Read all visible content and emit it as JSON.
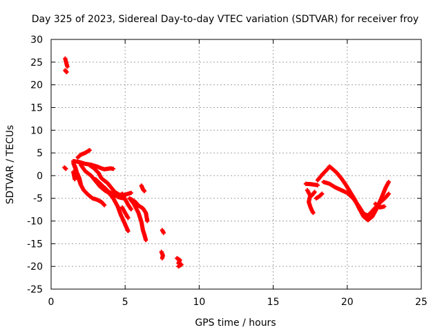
{
  "chart_data": {
    "type": "scatter",
    "title": "Day 325 of 2023, Sidereal Day-to-day VTEC variation (SDTVAR) for receiver froy",
    "xlabel": "GPS time / hours",
    "ylabel": "SDTVAR / TECUs",
    "xlim": [
      0,
      25
    ],
    "ylim": [
      -25,
      30
    ],
    "xticks": [
      0,
      5,
      10,
      15,
      20,
      25
    ],
    "yticks": [
      -25,
      -20,
      -15,
      -10,
      -5,
      0,
      5,
      10,
      15,
      20,
      25,
      30
    ],
    "grid": true,
    "marker": "plus",
    "color": "#ff0000",
    "segments": [
      [
        [
          0.95,
          25.8
        ],
        [
          1.05,
          24.5
        ],
        [
          1.1,
          24.0
        ]
      ],
      [
        [
          0.95,
          23.2
        ],
        [
          1.05,
          22.8
        ]
      ],
      [
        [
          0.9,
          1.8
        ],
        [
          1.0,
          1.5
        ]
      ],
      [
        [
          1.5,
          3.2
        ],
        [
          1.9,
          3.0
        ],
        [
          2.3,
          2.6
        ],
        [
          2.7,
          2.4
        ],
        [
          3.1,
          2.0
        ],
        [
          3.4,
          1.6
        ],
        [
          3.6,
          1.4
        ],
        [
          4.0,
          1.6
        ],
        [
          4.2,
          1.5
        ]
      ],
      [
        [
          1.8,
          4.0
        ],
        [
          2.0,
          4.6
        ],
        [
          2.3,
          5.0
        ],
        [
          2.6,
          5.6
        ]
      ],
      [
        [
          1.5,
          2.8
        ],
        [
          1.7,
          1.0
        ],
        [
          1.9,
          -0.5
        ],
        [
          2.0,
          -1.8
        ]
      ],
      [
        [
          1.6,
          2.2
        ],
        [
          1.8,
          0.0
        ],
        [
          2.0,
          -2.0
        ],
        [
          2.2,
          -3.2
        ],
        [
          2.5,
          -4.2
        ],
        [
          2.8,
          -5.0
        ],
        [
          3.1,
          -5.3
        ],
        [
          3.4,
          -5.8
        ],
        [
          3.6,
          -6.5
        ]
      ],
      [
        [
          1.5,
          0.8
        ],
        [
          1.6,
          -0.8
        ]
      ],
      [
        [
          2.0,
          2.4
        ],
        [
          2.3,
          1.0
        ],
        [
          2.7,
          0.0
        ],
        [
          3.0,
          -1.2
        ],
        [
          3.3,
          -2.4
        ],
        [
          3.6,
          -3.2
        ],
        [
          3.9,
          -3.8
        ],
        [
          4.2,
          -4.2
        ],
        [
          4.6,
          -4.8
        ],
        [
          4.9,
          -5.0
        ]
      ],
      [
        [
          2.6,
          2.3
        ],
        [
          2.9,
          1.6
        ],
        [
          3.2,
          0.6
        ],
        [
          3.4,
          -0.6
        ],
        [
          3.8,
          -1.6
        ],
        [
          4.1,
          -2.8
        ],
        [
          4.3,
          -3.6
        ],
        [
          4.6,
          -4.2
        ],
        [
          5.0,
          -4.2
        ],
        [
          5.4,
          -3.8
        ]
      ],
      [
        [
          3.0,
          -0.8
        ],
        [
          3.4,
          -2.0
        ],
        [
          3.8,
          -3.4
        ],
        [
          4.2,
          -5.0
        ],
        [
          4.5,
          -6.8
        ],
        [
          4.7,
          -8.6
        ],
        [
          4.9,
          -10.0
        ],
        [
          5.1,
          -11.5
        ],
        [
          5.2,
          -12.2
        ]
      ],
      [
        [
          3.6,
          -2.6
        ],
        [
          3.9,
          -3.6
        ],
        [
          4.3,
          -4.2
        ],
        [
          4.6,
          -4.4
        ]
      ],
      [
        [
          4.8,
          -4.0
        ],
        [
          5.0,
          -5.2
        ],
        [
          5.2,
          -6.4
        ],
        [
          5.4,
          -7.4
        ]
      ],
      [
        [
          5.3,
          -5.0
        ],
        [
          5.6,
          -6.3
        ],
        [
          5.9,
          -8.2
        ],
        [
          6.1,
          -10.2
        ],
        [
          6.2,
          -12.0
        ],
        [
          6.3,
          -13.0
        ],
        [
          6.4,
          -14.2
        ]
      ],
      [
        [
          5.4,
          -5.2
        ],
        [
          5.7,
          -5.8
        ],
        [
          5.9,
          -6.6
        ],
        [
          6.2,
          -7.2
        ],
        [
          6.4,
          -8.2
        ],
        [
          6.5,
          -10.0
        ]
      ],
      [
        [
          4.8,
          -7.0
        ],
        [
          5.0,
          -8.2
        ],
        [
          5.2,
          -9.3
        ]
      ],
      [
        [
          6.1,
          -2.2
        ],
        [
          6.2,
          -3.0
        ],
        [
          6.3,
          -3.4
        ]
      ],
      [
        [
          7.5,
          -12.0
        ],
        [
          7.6,
          -12.6
        ]
      ],
      [
        [
          7.45,
          -16.8
        ],
        [
          7.55,
          -17.6
        ],
        [
          7.5,
          -18.2
        ]
      ],
      [
        [
          8.5,
          -18.2
        ],
        [
          8.7,
          -18.6
        ],
        [
          8.6,
          -19.3
        ],
        [
          8.8,
          -19.6
        ],
        [
          8.6,
          -20.0
        ]
      ],
      [
        [
          17.2,
          -1.8
        ],
        [
          17.6,
          -1.9
        ],
        [
          18.0,
          -2.1
        ]
      ],
      [
        [
          17.3,
          -3.2
        ],
        [
          17.5,
          -4.4
        ],
        [
          17.4,
          -5.8
        ],
        [
          17.5,
          -6.8
        ],
        [
          17.6,
          -7.6
        ],
        [
          17.7,
          -8.2
        ]
      ],
      [
        [
          17.9,
          -5.0
        ],
        [
          18.1,
          -4.6
        ],
        [
          18.3,
          -4.0
        ]
      ],
      [
        [
          17.6,
          -4.4
        ],
        [
          17.8,
          -3.6
        ]
      ],
      [
        [
          18.0,
          -1.0
        ],
        [
          18.3,
          0.2
        ],
        [
          18.6,
          1.2
        ],
        [
          18.8,
          2.0
        ],
        [
          19.0,
          1.5
        ],
        [
          19.3,
          0.6
        ],
        [
          19.6,
          -0.6
        ],
        [
          19.9,
          -2.0
        ],
        [
          20.2,
          -3.6
        ],
        [
          20.5,
          -5.2
        ],
        [
          20.8,
          -7.2
        ],
        [
          21.1,
          -9.0
        ],
        [
          21.4,
          -9.8
        ],
        [
          21.7,
          -9.0
        ],
        [
          22.0,
          -7.2
        ],
        [
          22.3,
          -5.0
        ],
        [
          22.6,
          -2.6
        ],
        [
          22.8,
          -1.4
        ]
      ],
      [
        [
          18.4,
          -1.4
        ],
        [
          18.8,
          -1.8
        ],
        [
          19.2,
          -2.6
        ],
        [
          19.6,
          -3.2
        ],
        [
          20.0,
          -3.8
        ],
        [
          20.4,
          -5.0
        ],
        [
          20.8,
          -6.8
        ],
        [
          21.1,
          -8.4
        ],
        [
          21.4,
          -8.8
        ],
        [
          21.8,
          -7.4
        ],
        [
          22.2,
          -6.0
        ],
        [
          22.6,
          -4.8
        ],
        [
          22.8,
          -4.0
        ]
      ],
      [
        [
          21.9,
          -6.2
        ],
        [
          22.2,
          -7.0
        ],
        [
          22.5,
          -6.8
        ]
      ]
    ]
  }
}
